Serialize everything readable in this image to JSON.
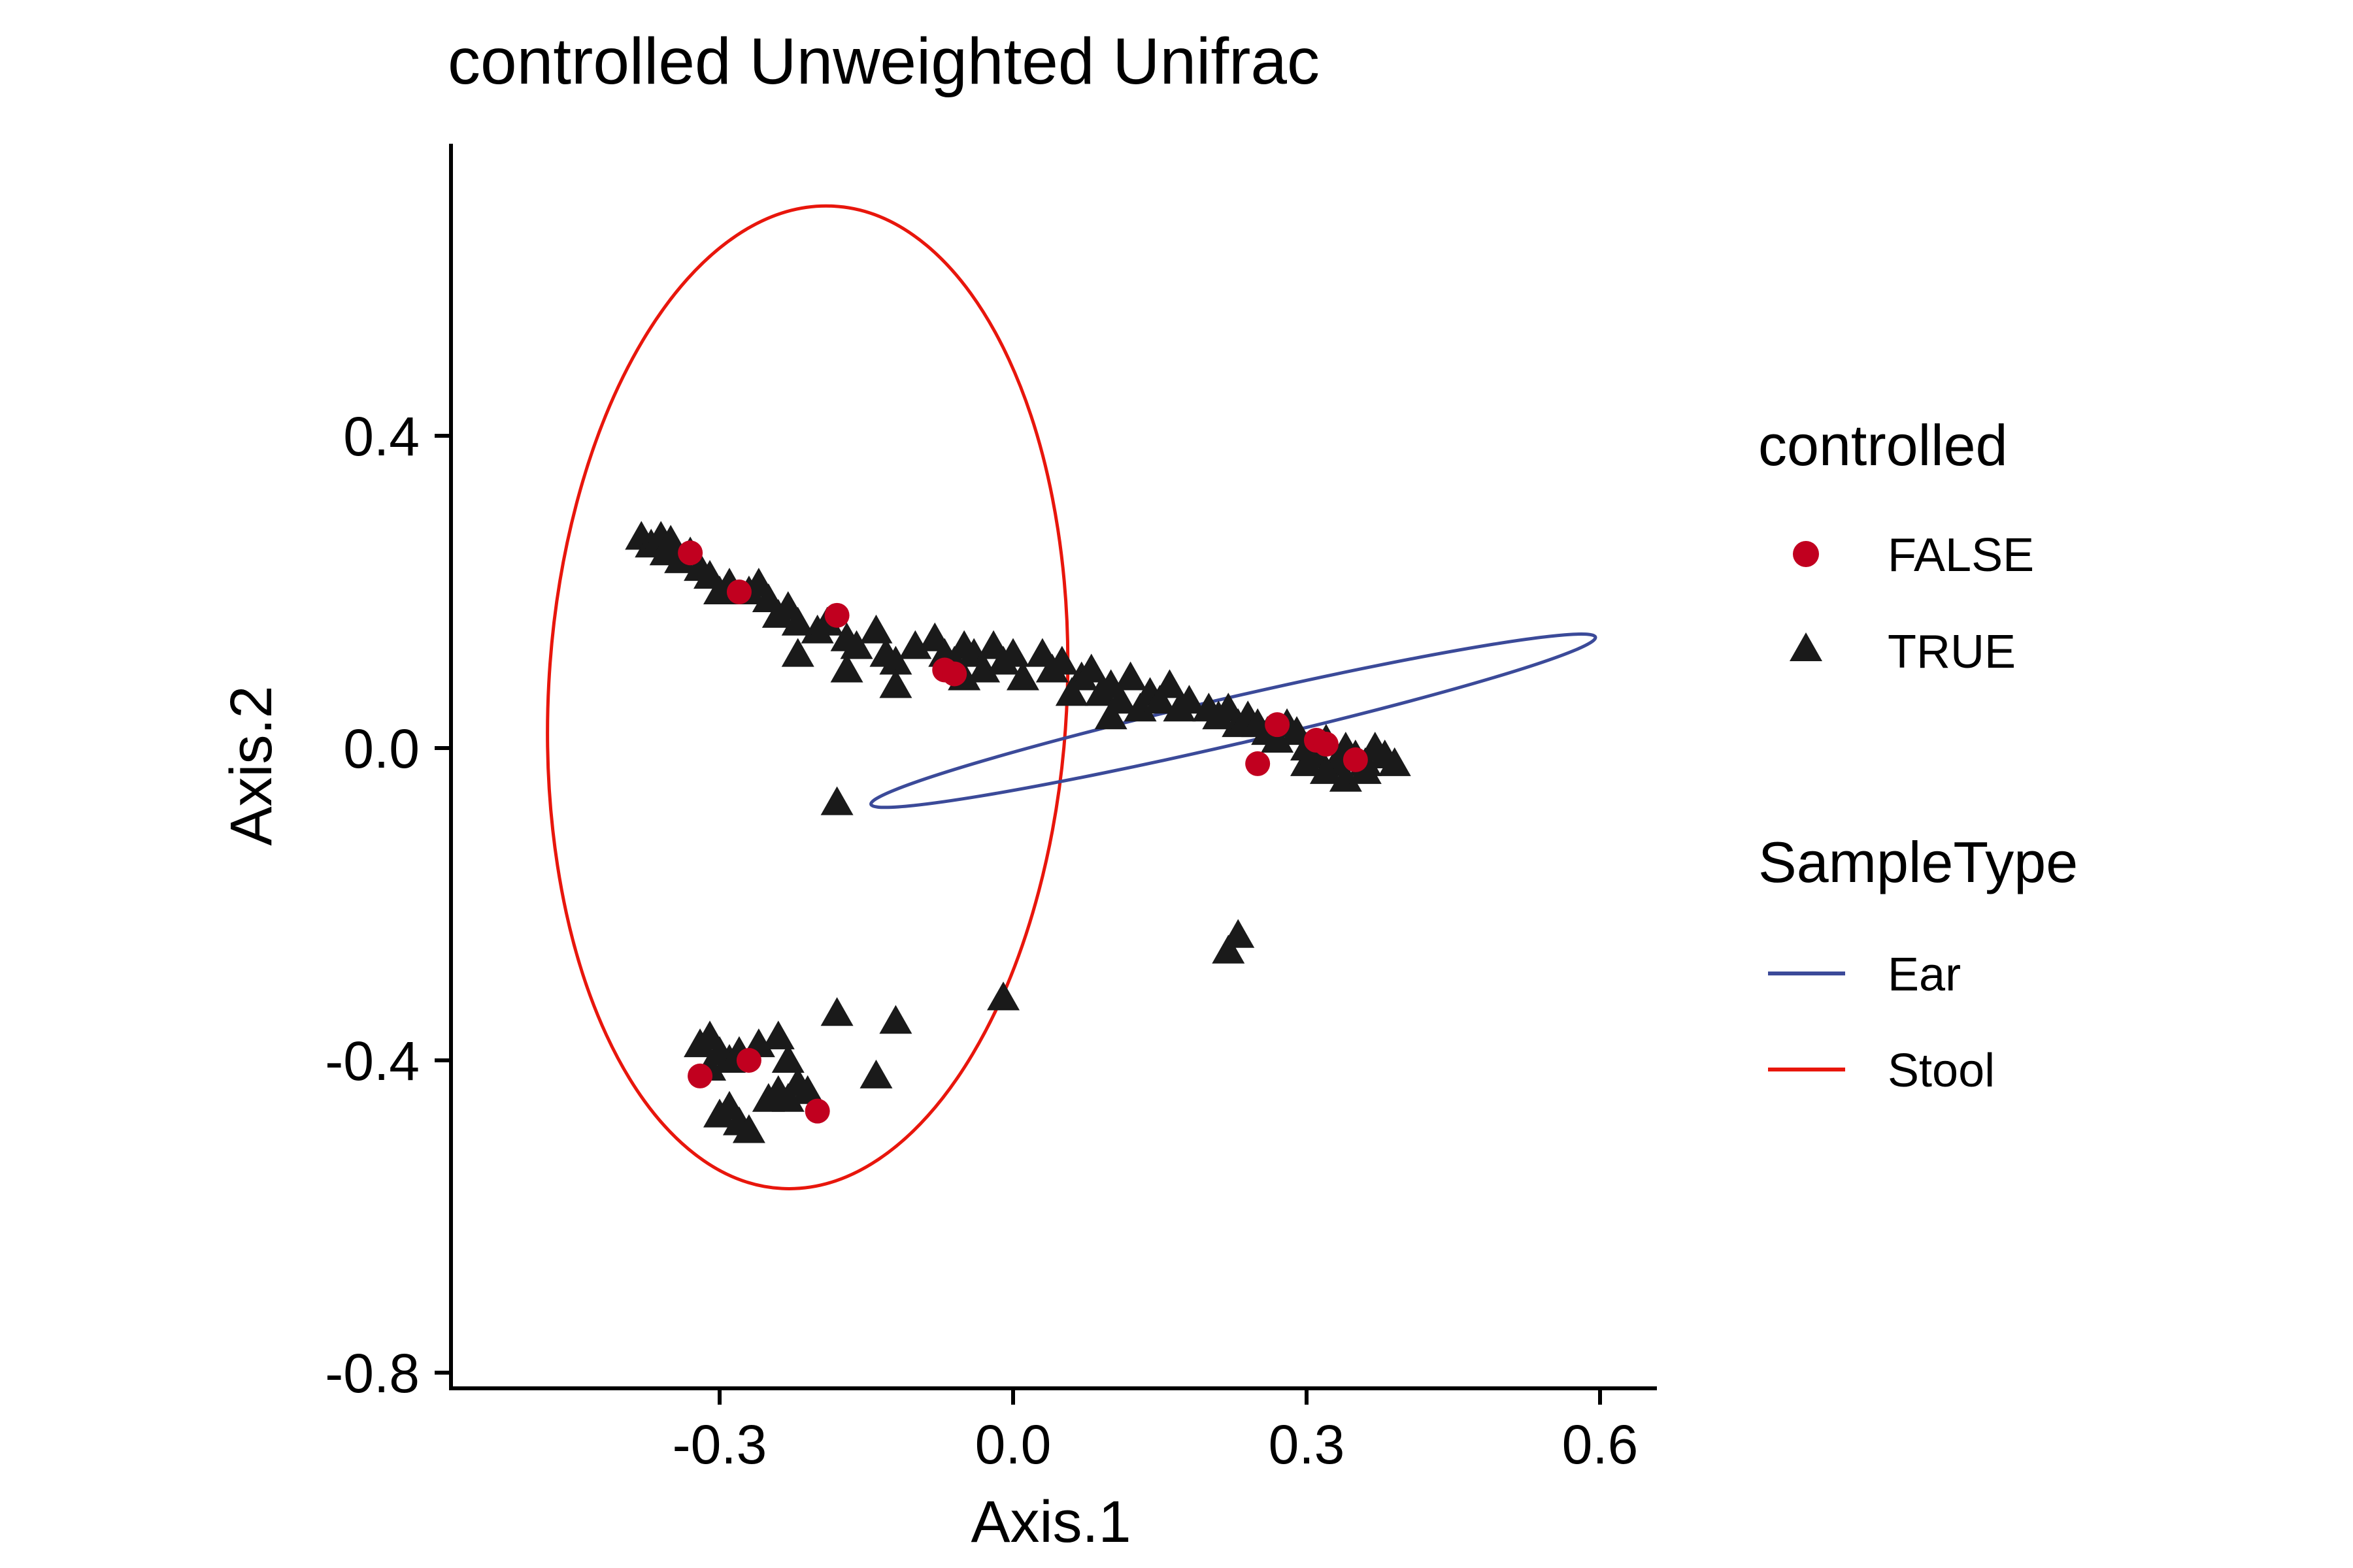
{
  "chart_data": {
    "type": "scatter",
    "title": "controlled Unweighted Unifrac",
    "xlabel": "Axis.1",
    "ylabel": "Axis.2",
    "xlim": [
      -0.56,
      0.65
    ],
    "ylim": [
      -0.8,
      0.77
    ],
    "x_ticks": [
      -0.3,
      0.0,
      0.3,
      0.6
    ],
    "x_tick_labels": [
      "-0.3",
      "0.0",
      "0.3",
      "0.6"
    ],
    "y_ticks": [
      0.4,
      0.0,
      -0.4,
      -0.8
    ],
    "y_tick_labels": [
      "0.4",
      "0.0",
      "-0.4",
      "-0.8"
    ],
    "grid": false,
    "legend_placement": "right",
    "legends": [
      {
        "title": "controlled",
        "entries": [
          {
            "label": "FALSE",
            "shape": "circle",
            "color": "#c1001f"
          },
          {
            "label": "TRUE",
            "shape": "triangle",
            "color": "#1a1a1a"
          }
        ]
      },
      {
        "title": "SampleType",
        "entries": [
          {
            "label": "Ear",
            "shape": "line",
            "color": "#3b4a99"
          },
          {
            "label": "Stool",
            "shape": "line",
            "color": "#e8160c"
          }
        ]
      }
    ],
    "series": [
      {
        "name": "TRUE",
        "shape": "triangle",
        "color": "#1a1a1a",
        "points": [
          [
            -0.38,
            0.27
          ],
          [
            -0.37,
            0.26
          ],
          [
            -0.36,
            0.27
          ],
          [
            -0.355,
            0.25
          ],
          [
            -0.35,
            0.265
          ],
          [
            -0.34,
            0.24
          ],
          [
            -0.33,
            0.25
          ],
          [
            -0.32,
            0.23
          ],
          [
            -0.31,
            0.22
          ],
          [
            -0.3,
            0.2
          ],
          [
            -0.29,
            0.21
          ],
          [
            -0.27,
            0.2
          ],
          [
            -0.26,
            0.21
          ],
          [
            -0.25,
            0.19
          ],
          [
            -0.24,
            0.17
          ],
          [
            -0.23,
            0.18
          ],
          [
            -0.22,
            0.16
          ],
          [
            -0.2,
            0.15
          ],
          [
            -0.19,
            0.16
          ],
          [
            -0.17,
            0.14
          ],
          [
            -0.16,
            0.13
          ],
          [
            -0.14,
            0.15
          ],
          [
            -0.13,
            0.12
          ],
          [
            -0.12,
            0.11
          ],
          [
            -0.1,
            0.13
          ],
          [
            -0.08,
            0.14
          ],
          [
            -0.07,
            0.12
          ],
          [
            -0.06,
            0.11
          ],
          [
            -0.05,
            0.13
          ],
          [
            -0.04,
            0.12
          ],
          [
            -0.03,
            0.1
          ],
          [
            -0.02,
            0.13
          ],
          [
            -0.01,
            0.11
          ],
          [
            0.0,
            0.12
          ],
          [
            0.01,
            0.09
          ],
          [
            0.03,
            0.12
          ],
          [
            0.04,
            0.1
          ],
          [
            0.05,
            0.11
          ],
          [
            0.07,
            0.09
          ],
          [
            0.08,
            0.1
          ],
          [
            0.09,
            0.07
          ],
          [
            0.1,
            0.08
          ],
          [
            0.11,
            0.06
          ],
          [
            0.12,
            0.09
          ],
          [
            0.13,
            0.05
          ],
          [
            0.14,
            0.07
          ],
          [
            0.15,
            0.06
          ],
          [
            0.16,
            0.08
          ],
          [
            0.17,
            0.05
          ],
          [
            0.18,
            0.06
          ],
          [
            0.2,
            0.05
          ],
          [
            0.21,
            0.04
          ],
          [
            0.22,
            0.05
          ],
          [
            0.23,
            0.03
          ],
          [
            0.24,
            0.04
          ],
          [
            0.25,
            0.03
          ],
          [
            0.26,
            0.02
          ],
          [
            0.27,
            0.01
          ],
          [
            0.28,
            0.03
          ],
          [
            0.29,
            0.02
          ],
          [
            0.3,
            0.0
          ],
          [
            0.31,
            -0.01
          ],
          [
            0.32,
            0.01
          ],
          [
            0.33,
            -0.02
          ],
          [
            0.34,
            0.0
          ],
          [
            0.35,
            -0.01
          ],
          [
            0.36,
            -0.02
          ],
          [
            0.37,
            0.0
          ],
          [
            0.38,
            -0.01
          ],
          [
            0.39,
            -0.02
          ],
          [
            0.3,
            -0.02
          ],
          [
            0.32,
            -0.03
          ],
          [
            0.34,
            -0.04
          ],
          [
            0.36,
            -0.03
          ],
          [
            0.1,
            0.04
          ],
          [
            -0.22,
            0.12
          ],
          [
            -0.17,
            0.1
          ],
          [
            -0.12,
            0.08
          ],
          [
            -0.05,
            0.09
          ],
          [
            0.06,
            0.07
          ],
          [
            -0.18,
            -0.07
          ],
          [
            0.23,
            -0.24
          ],
          [
            0.22,
            -0.26
          ],
          [
            -0.01,
            -0.32
          ],
          [
            -0.18,
            -0.34
          ],
          [
            -0.12,
            -0.35
          ],
          [
            -0.14,
            -0.42
          ],
          [
            -0.32,
            -0.38
          ],
          [
            -0.31,
            -0.37
          ],
          [
            -0.3,
            -0.39
          ],
          [
            -0.31,
            -0.41
          ],
          [
            -0.29,
            -0.4
          ],
          [
            -0.28,
            -0.39
          ],
          [
            -0.26,
            -0.38
          ],
          [
            -0.24,
            -0.37
          ],
          [
            -0.23,
            -0.4
          ],
          [
            -0.24,
            -0.44
          ],
          [
            -0.23,
            -0.45
          ],
          [
            -0.22,
            -0.43
          ],
          [
            -0.25,
            -0.45
          ],
          [
            -0.21,
            -0.44
          ],
          [
            -0.3,
            -0.47
          ],
          [
            -0.29,
            -0.46
          ],
          [
            -0.28,
            -0.48
          ],
          [
            -0.27,
            -0.49
          ]
        ]
      },
      {
        "name": "FALSE",
        "shape": "circle",
        "color": "#c1001f",
        "points": [
          [
            -0.33,
            0.25
          ],
          [
            -0.28,
            0.2
          ],
          [
            -0.18,
            0.17
          ],
          [
            -0.07,
            0.1
          ],
          [
            -0.06,
            0.095
          ],
          [
            0.27,
            0.03
          ],
          [
            0.31,
            0.01
          ],
          [
            0.32,
            0.005
          ],
          [
            0.35,
            -0.015
          ],
          [
            0.25,
            -0.02
          ],
          [
            -0.32,
            -0.42
          ],
          [
            -0.27,
            -0.4
          ],
          [
            -0.2,
            -0.465
          ]
        ]
      }
    ],
    "ellipses": [
      {
        "name": "Stool",
        "color": "#e8160c",
        "cx": -0.21,
        "cy": 0.065,
        "rx": 0.265,
        "ry": 0.63,
        "angle": 3
      },
      {
        "name": "Ear",
        "color": "#3b4a99",
        "cx": 0.225,
        "cy": 0.035,
        "rx": 0.38,
        "ry": 0.03,
        "angle": -13
      }
    ]
  }
}
